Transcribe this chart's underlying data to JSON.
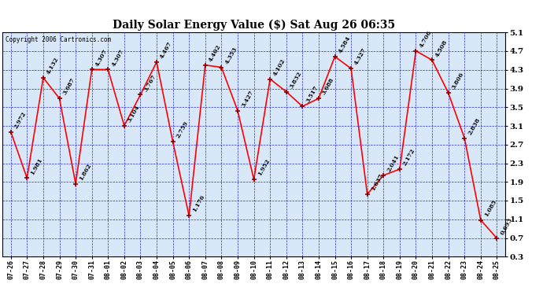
{
  "title": "Daily Solar Energy Value ($) Sat Aug 26 06:35",
  "copyright": "Copyright 2006 Cartronics.com",
  "dates": [
    "07-26",
    "07-27",
    "07-28",
    "07-29",
    "07-30",
    "07-31",
    "08-01",
    "08-02",
    "08-03",
    "08-04",
    "08-05",
    "08-06",
    "08-07",
    "08-08",
    "08-09",
    "08-10",
    "08-11",
    "08-12",
    "08-13",
    "08-14",
    "08-15",
    "08-16",
    "08-17",
    "08-18",
    "08-19",
    "08-20",
    "08-21",
    "08-22",
    "08-23",
    "08-24",
    "08-25"
  ],
  "values": [
    2.972,
    1.981,
    4.132,
    3.687,
    1.862,
    4.307,
    4.307,
    3.104,
    3.767,
    4.467,
    2.759,
    1.176,
    4.402,
    4.353,
    3.427,
    1.952,
    4.102,
    3.832,
    3.517,
    3.688,
    4.584,
    4.327,
    1.637,
    2.041,
    2.172,
    4.706,
    4.508,
    3.806,
    2.838,
    1.085,
    0.693
  ],
  "ylim": [
    0.3,
    5.1
  ],
  "yticks": [
    0.3,
    0.7,
    1.1,
    1.5,
    1.9,
    2.3,
    2.7,
    3.1,
    3.5,
    3.9,
    4.3,
    4.7,
    5.1
  ],
  "line_color": "red",
  "bg_color": "#d8e8f8",
  "grid_color": "#0000cc",
  "title_fontsize": 10,
  "label_fontsize": 6,
  "annotation_fontsize": 5.5,
  "copyright_fontsize": 5.5
}
